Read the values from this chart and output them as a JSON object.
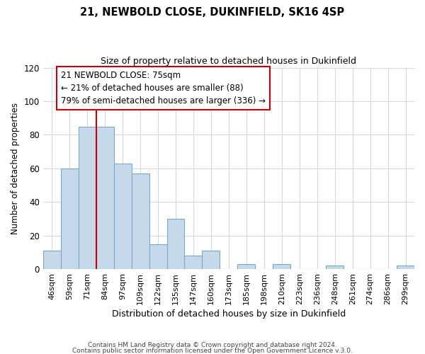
{
  "title_line1": "21, NEWBOLD CLOSE, DUKINFIELD, SK16 4SP",
  "title_line2": "Size of property relative to detached houses in Dukinfield",
  "xlabel": "Distribution of detached houses by size in Dukinfield",
  "ylabel": "Number of detached properties",
  "bar_labels": [
    "46sqm",
    "59sqm",
    "71sqm",
    "84sqm",
    "97sqm",
    "109sqm",
    "122sqm",
    "135sqm",
    "147sqm",
    "160sqm",
    "173sqm",
    "185sqm",
    "198sqm",
    "210sqm",
    "223sqm",
    "236sqm",
    "248sqm",
    "261sqm",
    "274sqm",
    "286sqm",
    "299sqm"
  ],
  "bar_heights": [
    11,
    60,
    85,
    85,
    63,
    57,
    15,
    30,
    8,
    11,
    0,
    3,
    0,
    3,
    0,
    0,
    2,
    0,
    0,
    0,
    2
  ],
  "bar_color": "#c5d9ea",
  "bar_edge_color": "#7aaac8",
  "vline_color": "#cc0000",
  "vline_position": 2.5,
  "ylim": [
    0,
    120
  ],
  "yticks": [
    0,
    20,
    40,
    60,
    80,
    100,
    120
  ],
  "annotation_title": "21 NEWBOLD CLOSE: 75sqm",
  "annotation_line2": "← 21% of detached houses are smaller (88)",
  "annotation_line3": "79% of semi-detached houses are larger (336) →",
  "annotation_box_color": "#ffffff",
  "annotation_box_edge": "#cc0000",
  "footer_line1": "Contains HM Land Registry data © Crown copyright and database right 2024.",
  "footer_line2": "Contains public sector information licensed under the Open Government Licence v.3.0.",
  "background_color": "#ffffff",
  "grid_color": "#d0d8e0"
}
